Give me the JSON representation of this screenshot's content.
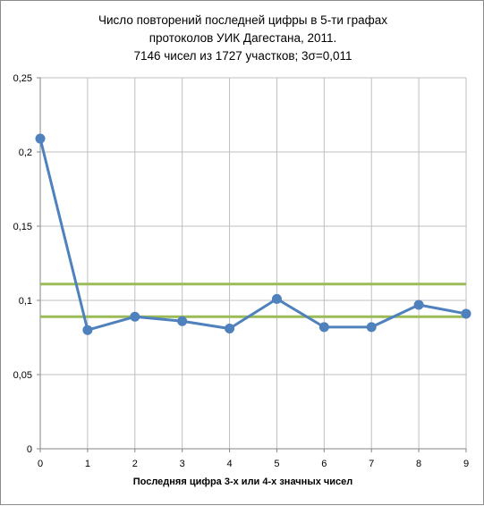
{
  "chart_data": {
    "type": "line",
    "title_lines": [
      "Число повторений последней цифры в 5-ти графах",
      "протоколов  УИК Дагестана, 2011.",
      "7146 чисел из 1727 участков; 3σ=0,011"
    ],
    "xlabel": "Последняя цифра  3-х или 4-х значных  чисел",
    "ylabel": "",
    "x": [
      0,
      1,
      2,
      3,
      4,
      5,
      6,
      7,
      8,
      9
    ],
    "xlim": [
      0,
      9
    ],
    "ylim": [
      0,
      0.25
    ],
    "y_ticks": [
      0,
      0.05,
      0.1,
      0.15,
      0.2,
      0.25
    ],
    "y_tick_labels": [
      "0",
      "0,05",
      "0,1",
      "0,15",
      "0,2",
      "0,25"
    ],
    "x_tick_labels": [
      "0",
      "1",
      "2",
      "3",
      "4",
      "5",
      "6",
      "7",
      "8",
      "9"
    ],
    "grid": true,
    "series": [
      {
        "values": [
          0.209,
          0.08,
          0.089,
          0.086,
          0.081,
          0.101,
          0.082,
          0.082,
          0.097,
          0.091
        ],
        "color": "#4f81bd"
      }
    ],
    "reference_lines": [
      {
        "value": 0.111,
        "color": "#9bbb59"
      },
      {
        "value": 0.089,
        "color": "#9bbb59"
      }
    ]
  }
}
